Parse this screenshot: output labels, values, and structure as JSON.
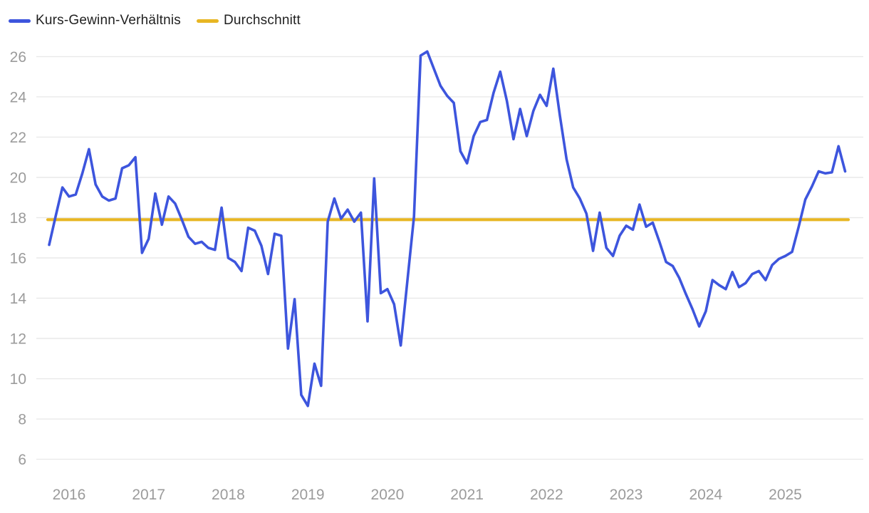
{
  "legend": {
    "series1_label": "Kurs-Gewinn-Verhältnis",
    "series2_label": "Durchschnitt"
  },
  "colors": {
    "series_line": "#3d55dd",
    "average_line": "#e8b623",
    "grid_line": "#e9e9e9",
    "axis_text": "#9b9b9b",
    "legend_text": "#1f1f1f",
    "background": "#ffffff"
  },
  "chart_data": {
    "type": "line",
    "title": "",
    "xlabel": "",
    "ylabel": "",
    "x_start": "2015-10",
    "x_frequency": "monthly",
    "x_tick_labels": [
      "2016",
      "2017",
      "2018",
      "2019",
      "2020",
      "2021",
      "2022",
      "2023",
      "2024",
      "2025"
    ],
    "y_ticks": [
      6,
      8,
      10,
      12,
      14,
      16,
      18,
      20,
      22,
      24,
      26
    ],
    "ylim": [
      5,
      27
    ],
    "grid": true,
    "legend_position": "top-left",
    "series": [
      {
        "name": "Kurs-Gewinn-Verhältnis",
        "color": "#3d55dd",
        "values": [
          16.65,
          18.1,
          19.5,
          19.05,
          19.15,
          20.2,
          21.4,
          19.65,
          19.05,
          18.85,
          18.95,
          20.45,
          20.6,
          21.0,
          16.25,
          16.95,
          19.2,
          17.65,
          19.05,
          18.7,
          17.9,
          17.05,
          16.7,
          16.8,
          16.5,
          16.4,
          18.5,
          16.0,
          15.8,
          15.35,
          17.5,
          17.35,
          16.6,
          15.2,
          17.2,
          17.1,
          11.5,
          13.95,
          9.2,
          8.65,
          10.75,
          9.65,
          17.8,
          18.95,
          17.95,
          18.4,
          17.8,
          18.25,
          12.85,
          19.95,
          14.25,
          14.45,
          13.7,
          11.65,
          14.85,
          18.05,
          26.05,
          26.25,
          25.4,
          24.55,
          24.05,
          23.7,
          21.3,
          20.7,
          22.05,
          22.75,
          22.85,
          24.2,
          25.25,
          23.8,
          21.9,
          23.4,
          22.05,
          23.3,
          24.1,
          23.55,
          25.4,
          23.05,
          20.9,
          19.5,
          18.95,
          18.2,
          16.35,
          18.25,
          16.5,
          16.1,
          17.1,
          17.6,
          17.4,
          18.65,
          17.55,
          17.75,
          16.8,
          15.8,
          15.6,
          15.0,
          14.2,
          13.45,
          12.6,
          13.35,
          14.9,
          14.65,
          14.45,
          15.3,
          14.55,
          14.75,
          15.2,
          15.35,
          14.9,
          15.65,
          15.95,
          16.1,
          16.3,
          17.55,
          18.9,
          19.55,
          20.3,
          20.2,
          20.25,
          21.55,
          20.3
        ]
      },
      {
        "name": "Durchschnitt",
        "color": "#e8b623",
        "value": 17.9
      }
    ]
  }
}
